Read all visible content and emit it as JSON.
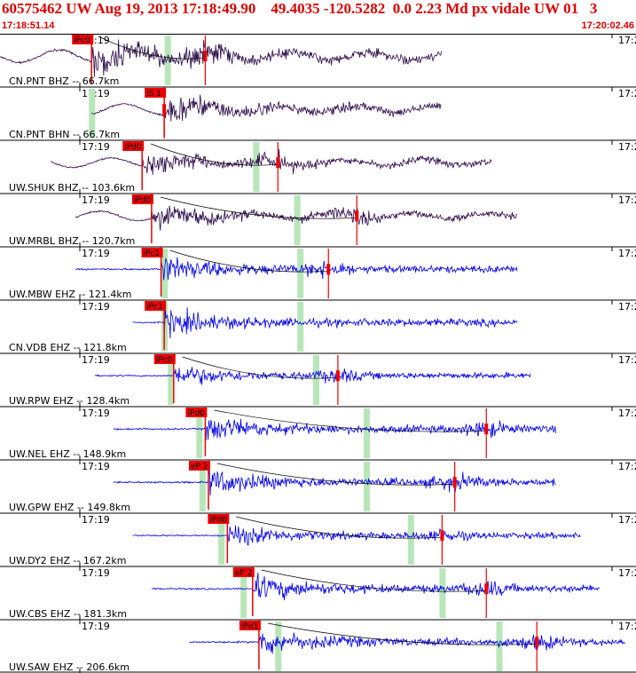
{
  "header": {
    "title": "60575462 UW Aug 19, 2013 17:18:49.90    49.4035 -120.5282  0.0 2.23 Md px vidale UW 01   3",
    "start_time": "17:18:51.14",
    "end_time": "17:20:02.46"
  },
  "time_tick_label": "17:19",
  "right_tick_label": "17:2",
  "colors": {
    "header_text": "#dd0000",
    "trace_dark": "#2b0a4a",
    "trace_blue": "#0000ee",
    "pick_box": "#ee0000",
    "s_window": "#b8e6b8",
    "travel_curve": "#000000"
  },
  "traces": [
    {
      "label": "CN.PNT BHZ -- 66.7km",
      "pick": "iPc0",
      "color": "dark",
      "start": 0.0,
      "end": 0.7,
      "onset": 0.145,
      "amp": 0.8,
      "s": 0.265,
      "coda": 0.325,
      "s2": null,
      "red": 0.325
    },
    {
      "label": "CN.PNT BHN -- 66.7km",
      "pick": "iS 1",
      "color": "dark",
      "start": 0.145,
      "end": 0.7,
      "onset": 0.26,
      "amp": 0.7,
      "s": 0.145,
      "coda": null,
      "s2": null,
      "red": 0.26
    },
    {
      "label": "UW.SHUK BHZ -- 103.6km",
      "pick": "iPd0",
      "color": "dark",
      "start": 0.08,
      "end": 0.78,
      "onset": 0.225,
      "amp": 0.6,
      "s": 0.405,
      "coda": 0.44,
      "s2": null,
      "red": 0.44
    },
    {
      "label": "UW.MRBL BHZ -- 120.7km",
      "pick": "iPd0",
      "color": "dark",
      "start": 0.12,
      "end": 0.82,
      "onset": 0.24,
      "amp": 0.6,
      "s": 0.47,
      "coda": 0.565,
      "s2": null,
      "red": 0.565
    },
    {
      "label": "UW.MBW EHZ -- 121.4km",
      "pick": "iPc1",
      "color": "blue",
      "start": 0.12,
      "end": 0.82,
      "onset": 0.255,
      "amp": 0.6,
      "s": 0.475,
      "coda": 0.52,
      "s2": 0.26,
      "red": 0.52
    },
    {
      "label": "CN.VDB EHZ -- 121.8km",
      "pick": "iPc1",
      "color": "blue",
      "start": 0.21,
      "end": 0.82,
      "onset": 0.26,
      "amp": 0.6,
      "s": 0.475,
      "coda": null,
      "s2": 0.26,
      "red": null
    },
    {
      "label": "UW.RPW EHZ -- 128.4km",
      "pick": "iPc0",
      "color": "blue",
      "start": 0.15,
      "end": 0.84,
      "onset": 0.275,
      "amp": 0.5,
      "s": 0.5,
      "coda": 0.535,
      "s2": 0.27,
      "red": 0.535
    },
    {
      "label": "UW.NEL EHZ -- 148.9km",
      "pick": "iPd0",
      "color": "blue",
      "start": 0.18,
      "end": 0.88,
      "onset": 0.325,
      "amp": 0.6,
      "s": 0.58,
      "coda": 0.77,
      "s2": 0.315,
      "red": 0.77
    },
    {
      "label": "UW.GPW EHZ -- 149.8km",
      "pick": "eP 2",
      "color": "blue",
      "start": 0.18,
      "end": 0.88,
      "onset": 0.33,
      "amp": 0.6,
      "s": 0.58,
      "coda": 0.72,
      "s2": 0.32,
      "red": 0.72
    },
    {
      "label": "UW.DY2 EHZ -- 167.2km",
      "pick": "iPd0",
      "color": "blue",
      "start": 0.21,
      "end": 0.92,
      "onset": 0.36,
      "amp": 0.5,
      "s": 0.65,
      "coda": 0.7,
      "s2": 0.35,
      "red": 0.7
    },
    {
      "label": "UW.CBS EHZ -- 181.3km",
      "pick": "eP 2",
      "color": "blue",
      "start": 0.24,
      "end": 0.95,
      "onset": 0.4,
      "amp": 0.6,
      "s": 0.7,
      "coda": 0.77,
      "s2": 0.385,
      "red": 0.77
    },
    {
      "label": "UW.SAW EHZ -- 206.6km",
      "pick": "iPd1",
      "color": "blue",
      "start": 0.3,
      "end": 0.99,
      "onset": 0.41,
      "amp": 0.6,
      "s": 0.79,
      "coda": 0.85,
      "s2": 0.44,
      "red": 0.85
    }
  ]
}
